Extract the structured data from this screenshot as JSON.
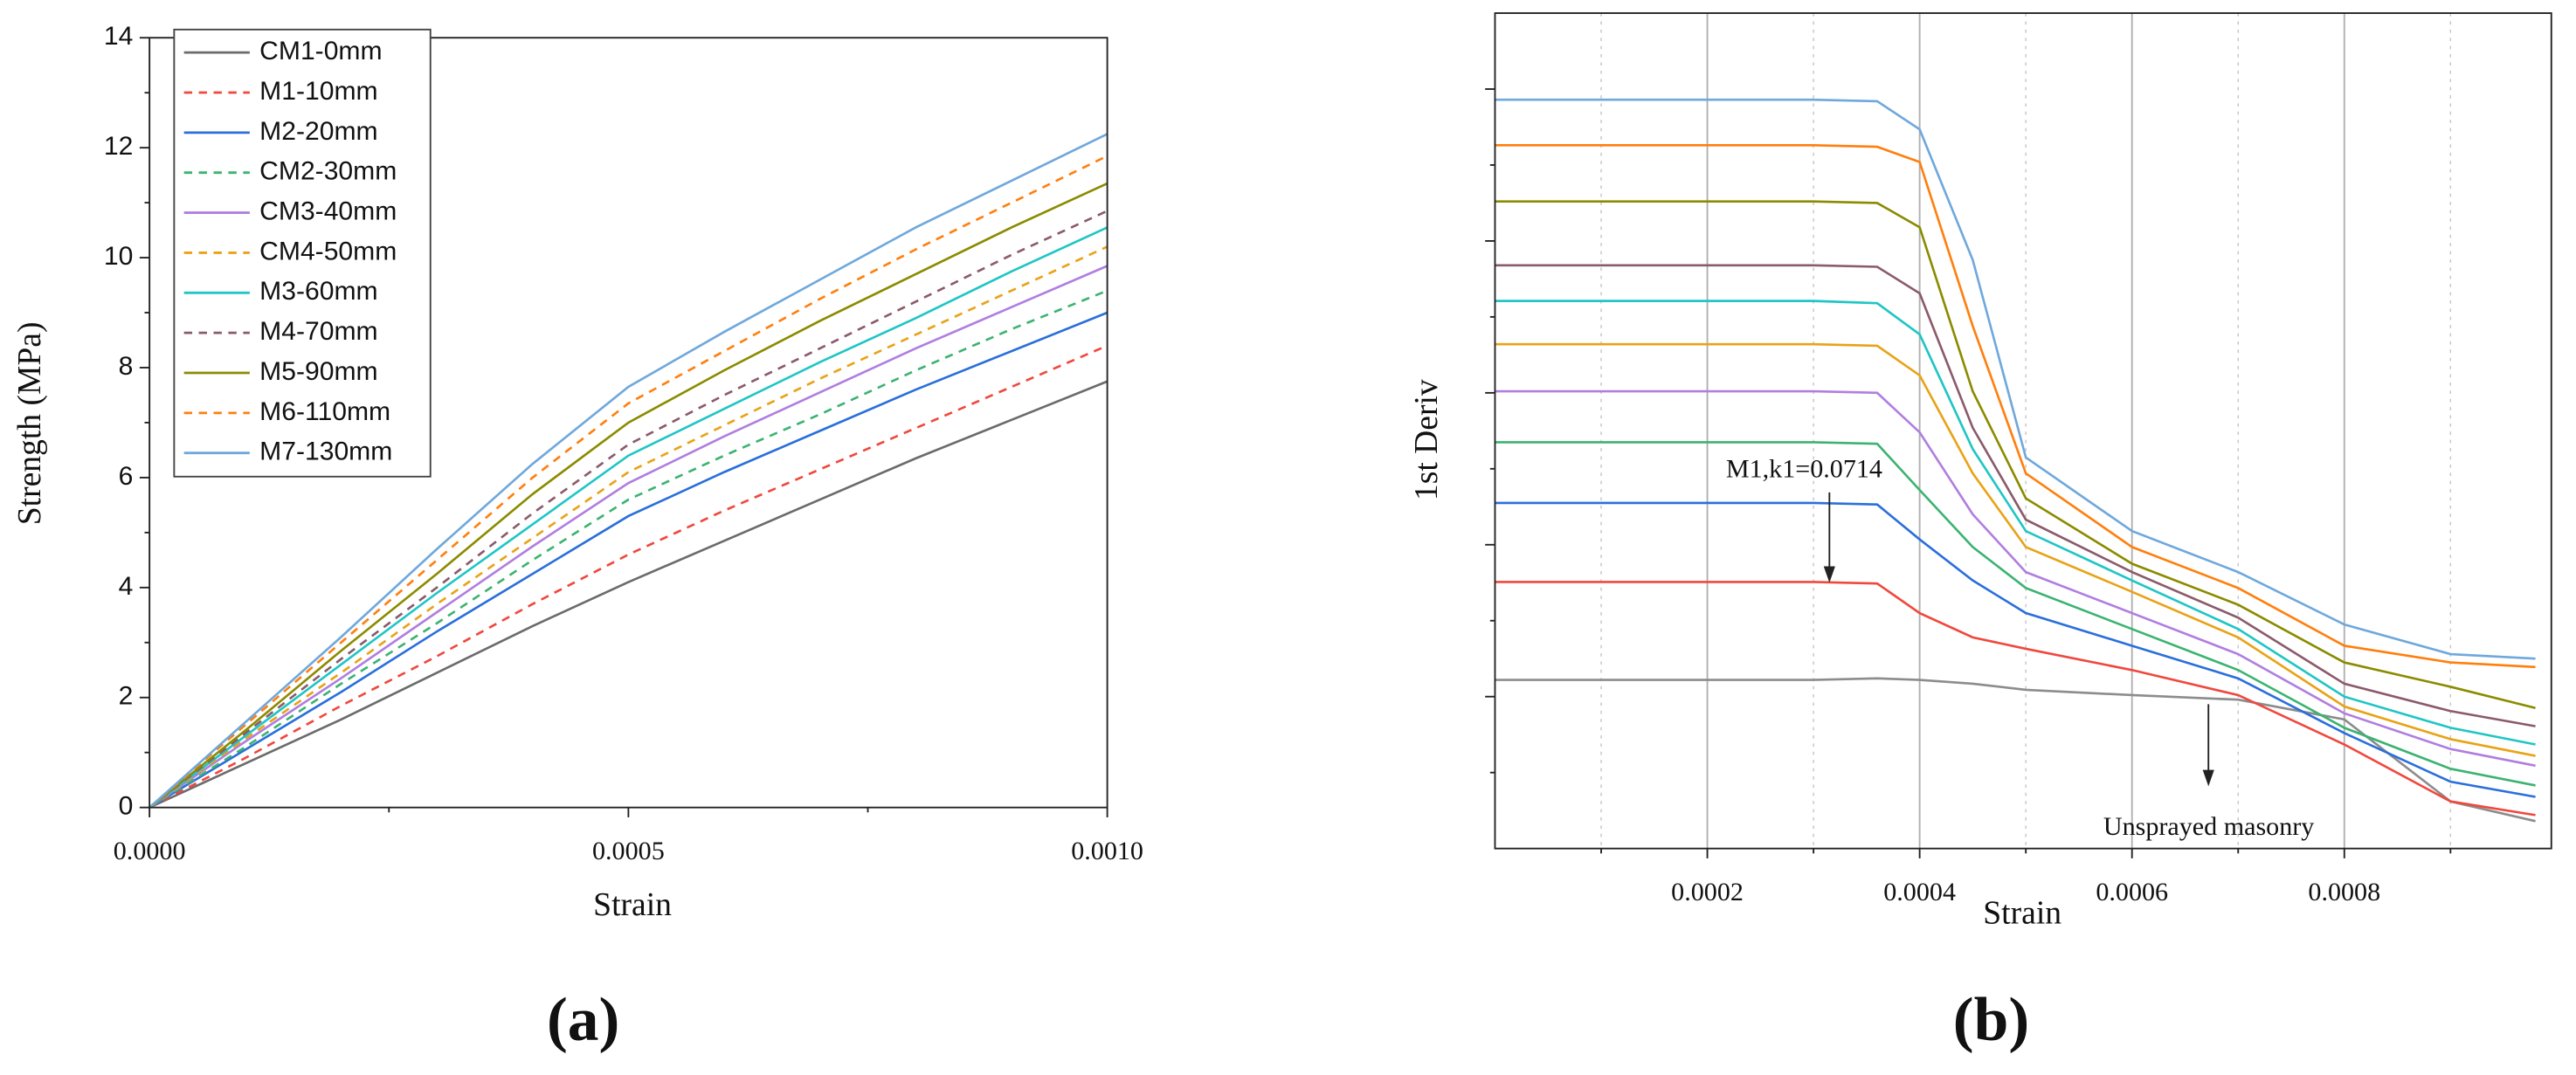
{
  "chart_data": [
    {
      "type": "line",
      "panel_label": "(a)",
      "xlabel": "Strain",
      "ylabel": "Strength (MPa)",
      "x": [
        0,
        0.0001,
        0.0002,
        0.0003,
        0.0004,
        0.0005,
        0.0006,
        0.0007,
        0.0008,
        0.0009,
        0.001
      ],
      "xlim": [
        0,
        0.001
      ],
      "xticks": [
        {
          "value": 0,
          "label": "0.0000"
        },
        0.0005,
        {
          "value": 0.001,
          "label": "0.0010"
        }
      ],
      "xminor": [
        0.00025,
        0.00075
      ],
      "ylim": [
        0,
        14
      ],
      "yticks": [
        0,
        2,
        4,
        6,
        8,
        10,
        12,
        14
      ],
      "yminor": [
        1,
        3,
        5,
        7,
        9,
        11,
        13
      ],
      "ytick_labels": true,
      "grid": false,
      "legend": "upper left",
      "series": [
        {
          "name": "CM1-0mm",
          "color": "#6b6b6b",
          "dashed": false,
          "values": [
            0,
            0.8,
            1.6,
            2.45,
            3.3,
            4.1,
            4.85,
            5.6,
            6.35,
            7.05,
            7.75
          ]
        },
        {
          "name": "M1-10mm",
          "color": "#f0483e",
          "dashed": true,
          "values": [
            0,
            0.9,
            1.85,
            2.75,
            3.7,
            4.6,
            5.4,
            6.15,
            6.9,
            7.65,
            8.4
          ]
        },
        {
          "name": "M2-20mm",
          "color": "#2a6fdb",
          "dashed": false,
          "values": [
            0,
            1.05,
            2.1,
            3.2,
            4.25,
            5.3,
            6.1,
            6.85,
            7.6,
            8.3,
            9.0
          ]
        },
        {
          "name": "CM2-30mm",
          "color": "#3cb371",
          "dashed": true,
          "values": [
            0,
            1.1,
            2.25,
            3.35,
            4.5,
            5.6,
            6.4,
            7.15,
            7.95,
            8.7,
            9.4
          ]
        },
        {
          "name": "CM3-40mm",
          "color": "#b07ee0",
          "dashed": false,
          "values": [
            0,
            1.2,
            2.35,
            3.55,
            4.75,
            5.9,
            6.75,
            7.55,
            8.35,
            9.1,
            9.85
          ]
        },
        {
          "name": "CM4-50mm",
          "color": "#e8a317",
          "dashed": true,
          "values": [
            0,
            1.25,
            2.45,
            3.7,
            4.9,
            6.1,
            6.95,
            7.8,
            8.6,
            9.4,
            10.2
          ]
        },
        {
          "name": "M3-60mm",
          "color": "#20c5c5",
          "dashed": false,
          "values": [
            0,
            1.3,
            2.6,
            3.9,
            5.15,
            6.4,
            7.25,
            8.1,
            8.9,
            9.75,
            10.55
          ]
        },
        {
          "name": "M4-70mm",
          "color": "#8b5a6b",
          "dashed": true,
          "values": [
            0,
            1.35,
            2.7,
            4.0,
            5.35,
            6.6,
            7.5,
            8.35,
            9.2,
            10.05,
            10.85
          ]
        },
        {
          "name": "M5-90mm",
          "color": "#8b8b00",
          "dashed": false,
          "values": [
            0,
            1.4,
            2.85,
            4.25,
            5.7,
            7.0,
            7.95,
            8.85,
            9.7,
            10.55,
            11.35
          ]
        },
        {
          "name": "M6-110mm",
          "color": "#ff7f0e",
          "dashed": true,
          "values": [
            0,
            1.5,
            3.0,
            4.5,
            6.0,
            7.35,
            8.3,
            9.25,
            10.15,
            11.0,
            11.85
          ]
        },
        {
          "name": "M7-130mm",
          "color": "#6fa8dc",
          "dashed": false,
          "values": [
            0,
            1.55,
            3.1,
            4.7,
            6.25,
            7.65,
            8.65,
            9.6,
            10.55,
            11.4,
            12.25
          ]
        }
      ]
    },
    {
      "type": "line",
      "panel_label": "(b)",
      "xlabel": "Strain",
      "ylabel": "1st Deriv",
      "x": [
        0,
        0.0001,
        0.0002,
        0.0003,
        0.00036,
        0.0004,
        0.00045,
        0.0005,
        0.0006,
        0.0007,
        0.0008,
        0.0009,
        0.00098
      ],
      "xlim": [
        0,
        0.000995
      ],
      "xticks": [
        0.0002,
        0.0004,
        0.0006,
        0.0008
      ],
      "xminor": [
        0.0001,
        0.0003,
        0.0005,
        0.0007,
        0.0009
      ],
      "ylim": [
        6000,
        17000
      ],
      "yticks": [
        8000,
        10000,
        12000,
        14000,
        16000
      ],
      "yminor": [
        7000,
        9000,
        11000,
        13000,
        15000
      ],
      "ytick_labels": false,
      "grid": true,
      "annotations": [
        {
          "text": "M1,k1=0.0714",
          "x": 0.000315,
          "y": 9500
        },
        {
          "text": "Unsprayed masonry",
          "x": 0.000672,
          "y": 7900
        }
      ],
      "series": [
        {
          "color": "#8c8c8c",
          "values": [
            8220,
            8220,
            8220,
            8220,
            8240,
            8220,
            8170,
            8090,
            8020,
            7960,
            7700,
            6620,
            6360
          ]
        },
        {
          "color": "#f0483e",
          "values": [
            9510,
            9510,
            9510,
            9510,
            9490,
            9100,
            8780,
            8630,
            8350,
            8020,
            7370,
            6620,
            6440
          ]
        },
        {
          "color": "#2a6fdb",
          "values": [
            10550,
            10550,
            10550,
            10550,
            10530,
            10070,
            9530,
            9100,
            8670,
            8240,
            7520,
            6880,
            6680
          ]
        },
        {
          "color": "#3cb371",
          "values": [
            11350,
            11350,
            11350,
            11350,
            11330,
            10720,
            9970,
            9430,
            8890,
            8350,
            7590,
            7050,
            6830
          ]
        },
        {
          "color": "#b07ee0",
          "values": [
            12020,
            12020,
            12020,
            12020,
            12000,
            11480,
            10400,
            9640,
            9100,
            8560,
            7780,
            7310,
            7090
          ]
        },
        {
          "color": "#e8a317",
          "values": [
            12640,
            12640,
            12640,
            12640,
            12620,
            12230,
            10940,
            9970,
            9380,
            8780,
            7870,
            7440,
            7220
          ]
        },
        {
          "color": "#20c5c5",
          "values": [
            13210,
            13210,
            13210,
            13210,
            13180,
            12770,
            11260,
            10180,
            9530,
            8890,
            8000,
            7590,
            7370
          ]
        },
        {
          "color": "#8b5a6b",
          "values": [
            13680,
            13680,
            13680,
            13680,
            13660,
            13310,
            11540,
            10330,
            9640,
            9040,
            8170,
            7810,
            7610
          ]
        },
        {
          "color": "#8b8b00",
          "values": [
            14520,
            14520,
            14520,
            14520,
            14500,
            14180,
            12020,
            10610,
            9750,
            9210,
            8450,
            8130,
            7850
          ]
        },
        {
          "color": "#ff7f0e",
          "values": [
            15260,
            15260,
            15260,
            15260,
            15240,
            15040,
            12880,
            10940,
            9970,
            9430,
            8670,
            8450,
            8390
          ]
        },
        {
          "color": "#6fa8dc",
          "values": [
            15860,
            15860,
            15860,
            15860,
            15840,
            15470,
            13750,
            11150,
            10180,
            9640,
            8950,
            8560,
            8500
          ]
        }
      ]
    }
  ]
}
